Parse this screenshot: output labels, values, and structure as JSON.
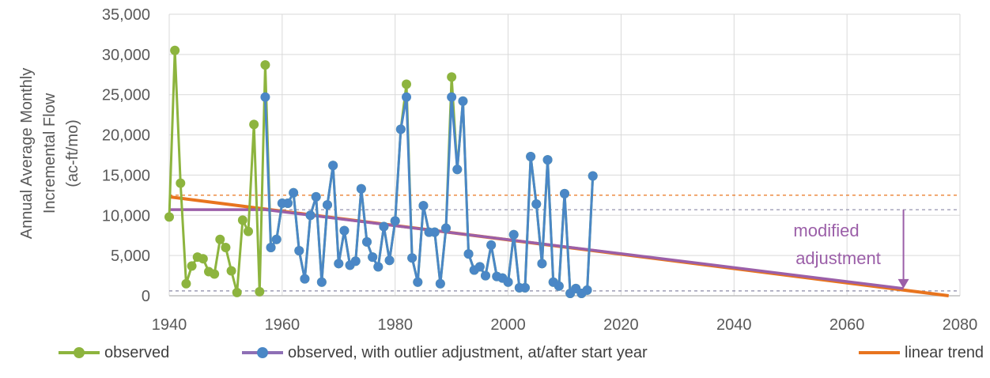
{
  "chart_data": {
    "type": "line",
    "ylabel_line1": "Annual Average Monthly",
    "ylabel_line2": "Incremental Flow",
    "ylabel_line3": "(ac-ft/mo)",
    "xlim": [
      1940,
      2080
    ],
    "ylim": [
      0,
      35000
    ],
    "xticks": [
      1940,
      1960,
      1980,
      2000,
      2020,
      2040,
      2060,
      2080
    ],
    "yticks": [
      0,
      5000,
      10000,
      15000,
      20000,
      25000,
      30000,
      35000
    ],
    "xtick_labels": [
      "1940",
      "1960",
      "1980",
      "2000",
      "2020",
      "2040",
      "2060",
      "2080"
    ],
    "ytick_labels": [
      "0",
      "5,000",
      "10,000",
      "15,000",
      "20,000",
      "25,000",
      "30,000",
      "35,000"
    ],
    "grid": "both",
    "legend_position": "bottom",
    "series": [
      {
        "name": "observed",
        "color": "#8DB43E",
        "marker": "circle",
        "x": [
          1940,
          1941,
          1942,
          1943,
          1944,
          1945,
          1946,
          1947,
          1948,
          1949,
          1950,
          1951,
          1952,
          1953,
          1954,
          1955,
          1956,
          1957,
          1958,
          1959,
          1960,
          1961,
          1962,
          1963,
          1964,
          1965,
          1966,
          1967,
          1968,
          1969,
          1970,
          1971,
          1972,
          1973,
          1974,
          1975,
          1976,
          1977,
          1978,
          1979,
          1980,
          1981,
          1982,
          1983,
          1984,
          1985,
          1986,
          1987,
          1988,
          1989,
          1990,
          1991,
          1992,
          1993,
          1994,
          1995,
          1996,
          1997,
          1998,
          1999,
          2000,
          2001,
          2002,
          2003,
          2004,
          2005,
          2006,
          2007,
          2008,
          2009,
          2010,
          2011,
          2012,
          2013,
          2014,
          2015
        ],
        "y": [
          9800,
          30500,
          14000,
          1500,
          3700,
          4800,
          4600,
          3000,
          2700,
          7000,
          6000,
          3100,
          400,
          9400,
          8000,
          21300,
          500,
          28700,
          6000,
          7000,
          11500,
          11500,
          12800,
          5600,
          2100,
          10000,
          12300,
          1700,
          11300,
          16200,
          4000,
          8100,
          3800,
          4300,
          13300,
          6700,
          4800,
          3600,
          8600,
          4400,
          9300,
          20700,
          26300,
          4700,
          1700,
          11200,
          7900,
          7900,
          1500,
          8400,
          27200,
          15700,
          24200,
          5200,
          3200,
          3600,
          2500,
          6300,
          2400,
          2200,
          1700,
          7600,
          1000,
          1000,
          17300,
          11400,
          4000,
          16900,
          1700,
          1200,
          12700,
          300,
          900,
          300,
          700,
          14900
        ]
      },
      {
        "name": "observed, with outlier adjustment, at/after start year",
        "color": "#4A87C6",
        "marker": "circle",
        "x": [
          1957,
          1958,
          1959,
          1960,
          1961,
          1962,
          1963,
          1964,
          1965,
          1966,
          1967,
          1968,
          1969,
          1970,
          1971,
          1972,
          1973,
          1974,
          1975,
          1976,
          1977,
          1978,
          1979,
          1980,
          1981,
          1982,
          1983,
          1984,
          1985,
          1986,
          1987,
          1988,
          1989,
          1990,
          1991,
          1992,
          1993,
          1994,
          1995,
          1996,
          1997,
          1998,
          1999,
          2000,
          2001,
          2002,
          2003,
          2004,
          2005,
          2006,
          2007,
          2008,
          2009,
          2010,
          2011,
          2012,
          2013,
          2014,
          2015
        ],
        "y": [
          24700,
          6000,
          7000,
          11500,
          11500,
          12800,
          5600,
          2100,
          10000,
          12300,
          1700,
          11300,
          16200,
          4000,
          8100,
          3800,
          4300,
          13300,
          6700,
          4800,
          3600,
          8600,
          4400,
          9300,
          20700,
          24700,
          4700,
          1700,
          11200,
          7900,
          7900,
          1500,
          8400,
          24700,
          15700,
          24200,
          5200,
          3200,
          3600,
          2500,
          6300,
          2400,
          2200,
          1700,
          7600,
          1000,
          1000,
          17300,
          11400,
          4000,
          16900,
          1700,
          1200,
          12700,
          300,
          900,
          300,
          700,
          14900
        ]
      },
      {
        "name": "linear trend",
        "color": "#E8741E",
        "marker": "none",
        "x": [
          1940,
          2078
        ],
        "y": [
          12300,
          0
        ]
      }
    ],
    "reference_lines": [
      {
        "style": "dashed",
        "color": "#E8741E",
        "y": 12500,
        "x_range": [
          1940,
          2080
        ]
      },
      {
        "style": "dashed",
        "color": "#8A89A6",
        "y": 10700,
        "x_range": [
          1940,
          2080
        ]
      },
      {
        "style": "dashed",
        "color": "#8A89A6",
        "y": 600,
        "x_range": [
          1940,
          2080
        ]
      }
    ],
    "adjusted_trend": {
      "color": "#9B5FA8",
      "x": [
        1940,
        1957,
        2070
      ],
      "y": [
        10700,
        10700,
        900
      ]
    },
    "annotation": {
      "line1": "modified",
      "line2": "adjustment",
      "color": "#9B5FA8",
      "arrow_x": 2070,
      "arrow_from_y": 10700,
      "arrow_to_y": 900
    }
  },
  "legend": {
    "observed": "observed",
    "adjusted": "observed, with outlier adjustment, at/after start year",
    "trend": "linear trend"
  }
}
